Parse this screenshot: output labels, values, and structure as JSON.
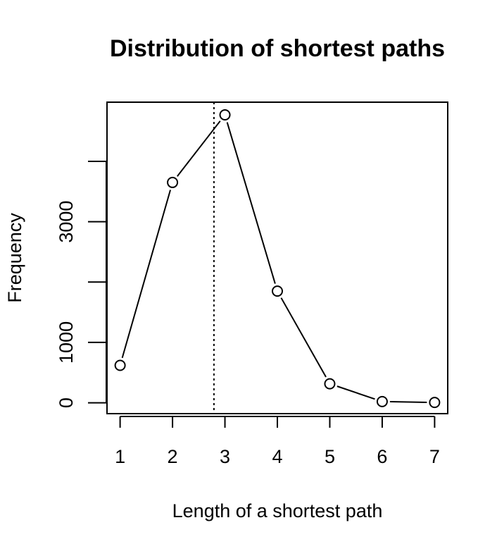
{
  "chart_data": {
    "type": "line",
    "title": "Distribution of shortest paths",
    "xlabel": "Length of a shortest path",
    "ylabel": "Frequency",
    "x": [
      1,
      2,
      3,
      4,
      5,
      6,
      7
    ],
    "series": [
      {
        "values": [
          620,
          3650,
          4770,
          1850,
          315,
          20,
          5
        ]
      }
    ],
    "xlim": [
      0.75,
      7.25
    ],
    "ylim": [
      -180,
      4980
    ],
    "x_ticks": [
      {
        "value": 1,
        "label": "1"
      },
      {
        "value": 2,
        "label": "2"
      },
      {
        "value": 3,
        "label": "3"
      },
      {
        "value": 4,
        "label": "4"
      },
      {
        "value": 5,
        "label": "5"
      },
      {
        "value": 6,
        "label": "6"
      },
      {
        "value": 7,
        "label": "7"
      }
    ],
    "y_ticks": [
      {
        "value": 0,
        "label": "0"
      },
      {
        "value": 1000,
        "label": "1000"
      },
      {
        "value": 2000,
        "label": ""
      },
      {
        "value": 3000,
        "label": "3000"
      },
      {
        "value": 4000,
        "label": ""
      }
    ],
    "reference_line": {
      "x": 2.79,
      "style": "dotted",
      "orientation": "vertical"
    },
    "marker": "open-circle",
    "grid": false,
    "legend": "none"
  }
}
